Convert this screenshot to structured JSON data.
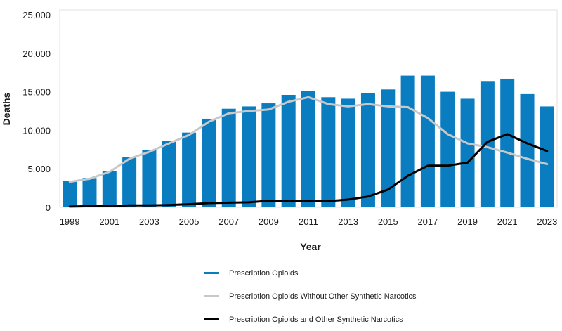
{
  "chart_data": {
    "type": "bar",
    "xlabel": "Year",
    "ylabel": "Deaths",
    "ylim": [
      0,
      25000
    ],
    "yticks": [
      0,
      5000,
      10000,
      15000,
      20000,
      25000
    ],
    "ytick_labels": [
      "0",
      "5,000",
      "10,000",
      "15,000",
      "20,000",
      "25,000"
    ],
    "categories": [
      "1999",
      "2000",
      "2001",
      "2002",
      "2003",
      "2004",
      "2005",
      "2006",
      "2007",
      "2008",
      "2009",
      "2010",
      "2011",
      "2012",
      "2013",
      "2014",
      "2015",
      "2016",
      "2017",
      "2018",
      "2019",
      "2020",
      "2021",
      "2022",
      "2023"
    ],
    "xtick_labels": [
      "1999",
      "2001",
      "2003",
      "2005",
      "2007",
      "2009",
      "2011",
      "2013",
      "2015",
      "2017",
      "2019",
      "2021",
      "2023"
    ],
    "grid": false,
    "legend_position": "bottom",
    "series": [
      {
        "name": "Prescription Opioids",
        "type": "bar",
        "color": "#0a7dc1",
        "values": [
          3400,
          3800,
          4700,
          6500,
          7400,
          8600,
          9700,
          11500,
          12800,
          13100,
          13500,
          14600,
          15100,
          14300,
          14100,
          14800,
          15300,
          17100,
          17100,
          15000,
          14100,
          16400,
          16700,
          14700,
          13100
        ]
      },
      {
        "name": "Prescription Opioids Without Other Synthetic Narcotics",
        "type": "line",
        "color": "#c8c8c8",
        "values": [
          3300,
          3700,
          4600,
          6300,
          7200,
          8300,
          9400,
          11100,
          12200,
          12500,
          12700,
          13700,
          14300,
          13400,
          13100,
          13400,
          13100,
          13000,
          11600,
          9500,
          8300,
          7800,
          7100,
          6300,
          5600
        ]
      },
      {
        "name": "Prescription Opioids and Other Synthetic Narcotics",
        "type": "line",
        "color": "#000000",
        "values": [
          100,
          150,
          150,
          250,
          250,
          300,
          400,
          550,
          600,
          650,
          850,
          850,
          800,
          800,
          1000,
          1400,
          2300,
          4100,
          5400,
          5400,
          5800,
          8500,
          9500,
          8300,
          7300
        ]
      }
    ]
  }
}
